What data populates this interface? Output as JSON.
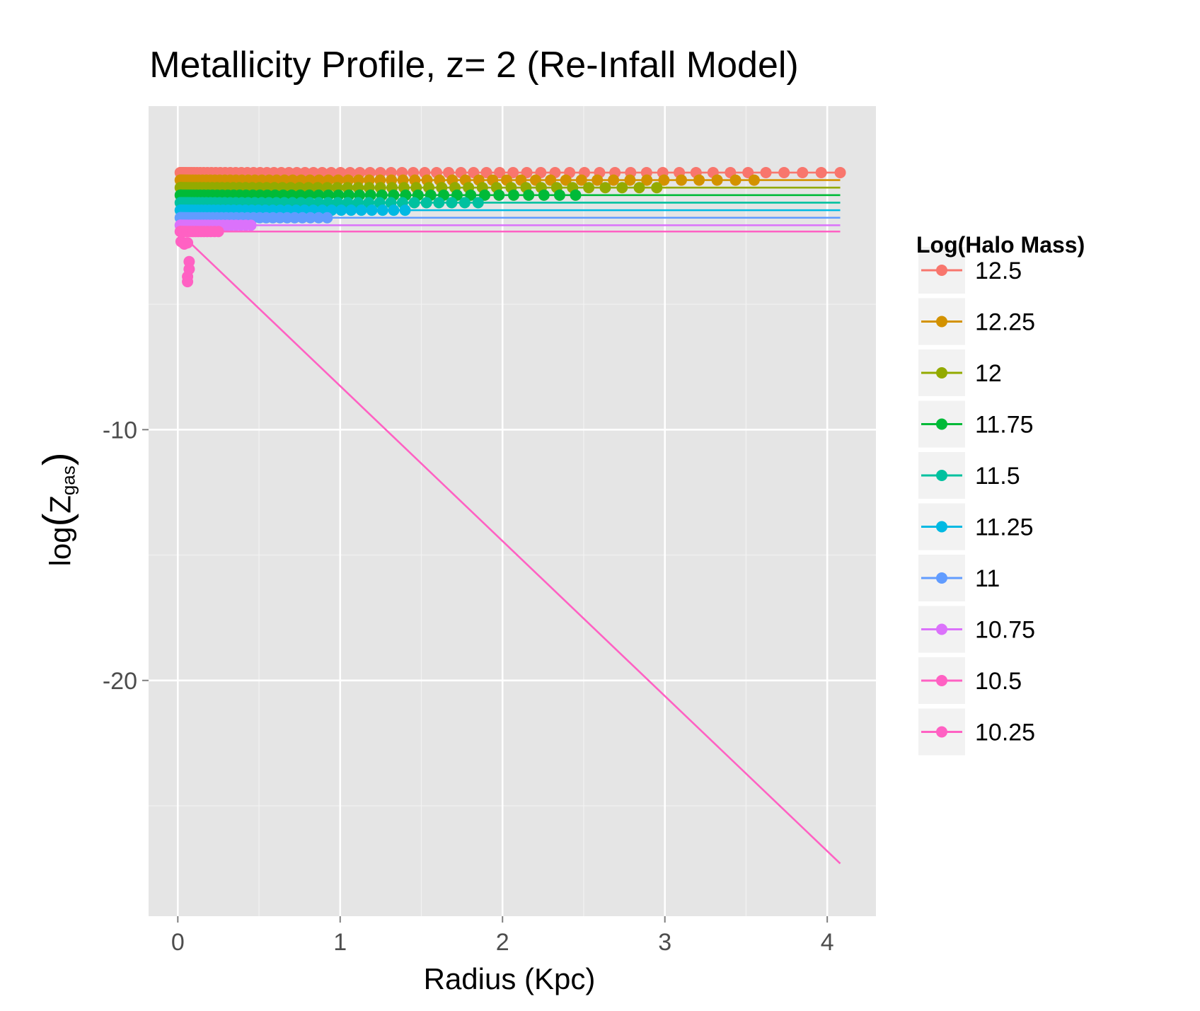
{
  "chart_data": {
    "type": "line",
    "title": "Metallicity Profile, z= 2 (Re-Infall Model)",
    "xlabel": "Radius (Kpc)",
    "ylabel": {
      "prefix": "log",
      "open": "(",
      "main": "Z",
      "sub": "gas",
      "close": ")"
    },
    "xlim": [
      -0.18,
      4.3
    ],
    "ylim": [
      -29.4,
      2.9
    ],
    "x_ticks": [
      0,
      1,
      2,
      3,
      4
    ],
    "x_tick_labels": [
      "0",
      "1",
      "2",
      "3",
      "4"
    ],
    "y_ticks": [
      -10,
      -20
    ],
    "y_tick_labels": [
      "-10",
      "-20"
    ],
    "grid": true,
    "legend": {
      "title": "Log(Halo Mass)",
      "position": "right"
    },
    "series": [
      {
        "name": "12.5",
        "color": "#F8766D",
        "y": 0.25,
        "x_max": 4.08,
        "n_points": 70,
        "line_end": 4.08
      },
      {
        "name": "12.25",
        "color": "#D39200",
        "y": -0.05,
        "x_max": 3.55,
        "n_points": 62,
        "line_end": 4.08
      },
      {
        "name": "12",
        "color": "#93AA00",
        "y": -0.35,
        "x_max": 2.95,
        "n_points": 55,
        "line_end": 4.08
      },
      {
        "name": "11.75",
        "color": "#00BA38",
        "y": -0.65,
        "x_max": 2.45,
        "n_points": 50,
        "line_end": 4.08
      },
      {
        "name": "11.5",
        "color": "#00C19F",
        "y": -0.95,
        "x_max": 1.85,
        "n_points": 45,
        "line_end": 4.08
      },
      {
        "name": "11.25",
        "color": "#00B9E3",
        "y": -1.25,
        "x_max": 1.4,
        "n_points": 40,
        "line_end": 4.08
      },
      {
        "name": "11",
        "color": "#619CFF",
        "y": -1.55,
        "x_max": 0.92,
        "n_points": 35,
        "line_end": 4.08
      },
      {
        "name": "10.75",
        "color": "#DB72FB",
        "y": -1.85,
        "x_max": 0.45,
        "n_points": 28,
        "line_end": 4.08
      },
      {
        "name": "10.5",
        "color": "#FF61C3",
        "y": -2.1,
        "x_max": 0.25,
        "n_points": 20,
        "line_end": 4.08
      },
      {
        "name": "10.25",
        "color": "#FF61C3",
        "points": [
          [
            0.02,
            -2.5
          ],
          [
            0.04,
            -2.6
          ],
          [
            0.06,
            -2.55
          ],
          [
            0.07,
            -3.3
          ],
          [
            0.07,
            -3.6
          ],
          [
            0.06,
            -3.9
          ],
          [
            0.06,
            -4.1
          ]
        ],
        "line": [
          [
            0.06,
            -2.45
          ],
          [
            4.08,
            -27.3
          ]
        ]
      }
    ]
  }
}
